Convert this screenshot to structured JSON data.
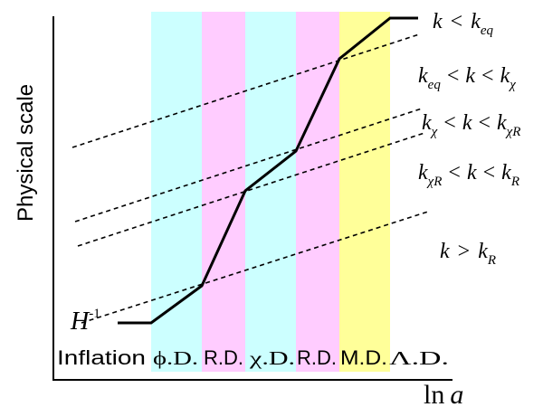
{
  "axes": {
    "ylabel": "Physical scale",
    "xlabel_fn": "ln",
    "xlabel_var": "a"
  },
  "hubble": {
    "symbol": "H",
    "exponent": "-1"
  },
  "eras": [
    {
      "label": "Inflation",
      "color": ""
    },
    {
      "label": "ϕ.D.",
      "color": "#ccffff"
    },
    {
      "label": "R.D.",
      "color": "#ffccff"
    },
    {
      "label": "χ.D.",
      "color": "#ccffff"
    },
    {
      "label": "R.D.",
      "color": "#ffccff"
    },
    {
      "label": "M.D.",
      "color": "#ffff99"
    },
    {
      "label": "Λ.D.",
      "color": ""
    }
  ],
  "modes": [
    {
      "k": "k",
      "r1": "<",
      "b": "k",
      "b_sub": "eq"
    },
    {
      "a": "k",
      "a_sub": "eq",
      "l1": "<",
      "k": "k",
      "r1": "<",
      "b": "k",
      "b_sub": "χ"
    },
    {
      "a": "k",
      "a_sub": "χ",
      "l1": "<",
      "k": "k",
      "r1": "<",
      "b": "k",
      "b_sub": "χR"
    },
    {
      "a": "k",
      "a_sub": "χR",
      "l1": "<",
      "k": "k",
      "r1": "<",
      "b": "k",
      "b_sub": "R"
    },
    {
      "k": "k",
      "r1": ">",
      "b": "k",
      "b_sub": "R"
    }
  ]
}
